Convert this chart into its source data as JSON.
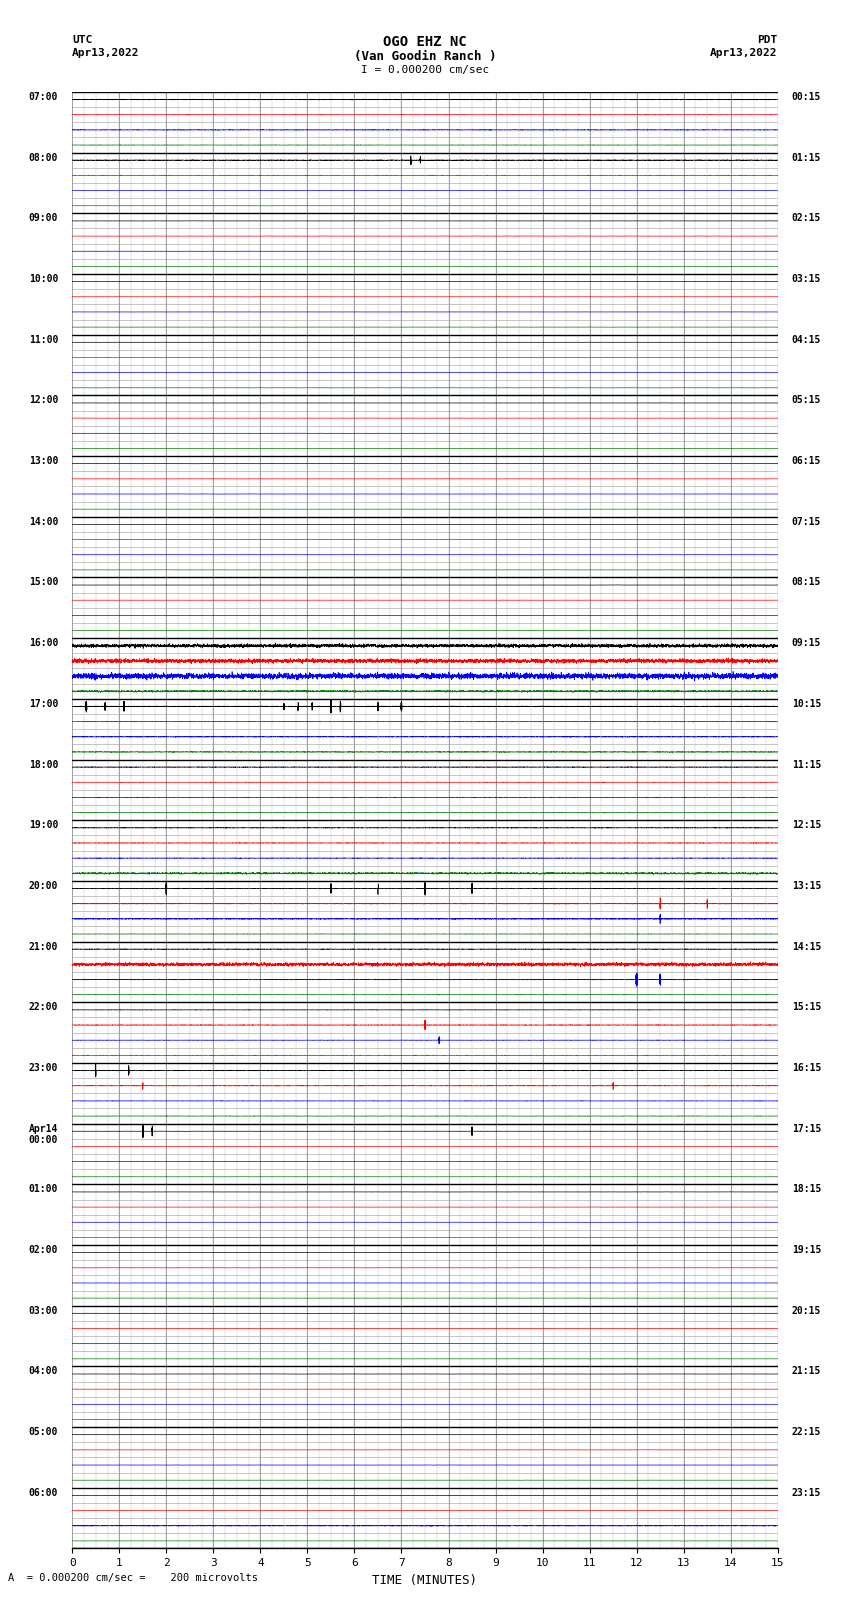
{
  "title_line1": "OGO EHZ NC",
  "title_line2": "(Van Goodin Ranch )",
  "scale_text": "I = 0.000200 cm/sec",
  "left_label": "UTC",
  "right_label": "PDT",
  "date_left": "Apr13,2022",
  "date_right": "Apr13,2022",
  "xlabel": "TIME (MINUTES)",
  "bottom_note": "= 0.000200 cm/sec =    200 microvolts",
  "xlim": [
    0,
    15
  ],
  "xticks": [
    0,
    1,
    2,
    3,
    4,
    5,
    6,
    7,
    8,
    9,
    10,
    11,
    12,
    13,
    14,
    15
  ],
  "utc_labels": [
    "07:00",
    "08:00",
    "09:00",
    "10:00",
    "11:00",
    "12:00",
    "13:00",
    "14:00",
    "15:00",
    "16:00",
    "17:00",
    "18:00",
    "19:00",
    "20:00",
    "21:00",
    "22:00",
    "23:00",
    "Apr14\n00:00",
    "01:00",
    "02:00",
    "03:00",
    "04:00",
    "05:00",
    "06:00"
  ],
  "pdt_labels": [
    "00:15",
    "01:15",
    "02:15",
    "03:15",
    "04:15",
    "05:15",
    "06:15",
    "07:15",
    "08:15",
    "09:15",
    "10:15",
    "11:15",
    "12:15",
    "13:15",
    "14:15",
    "15:15",
    "16:15",
    "17:15",
    "18:15",
    "19:15",
    "20:15",
    "21:15",
    "22:15",
    "23:15"
  ],
  "num_rows": 24,
  "trace_colors": [
    "black",
    "red",
    "blue",
    "green"
  ],
  "bg_color": "white",
  "fig_width": 8.5,
  "fig_height": 16.13
}
